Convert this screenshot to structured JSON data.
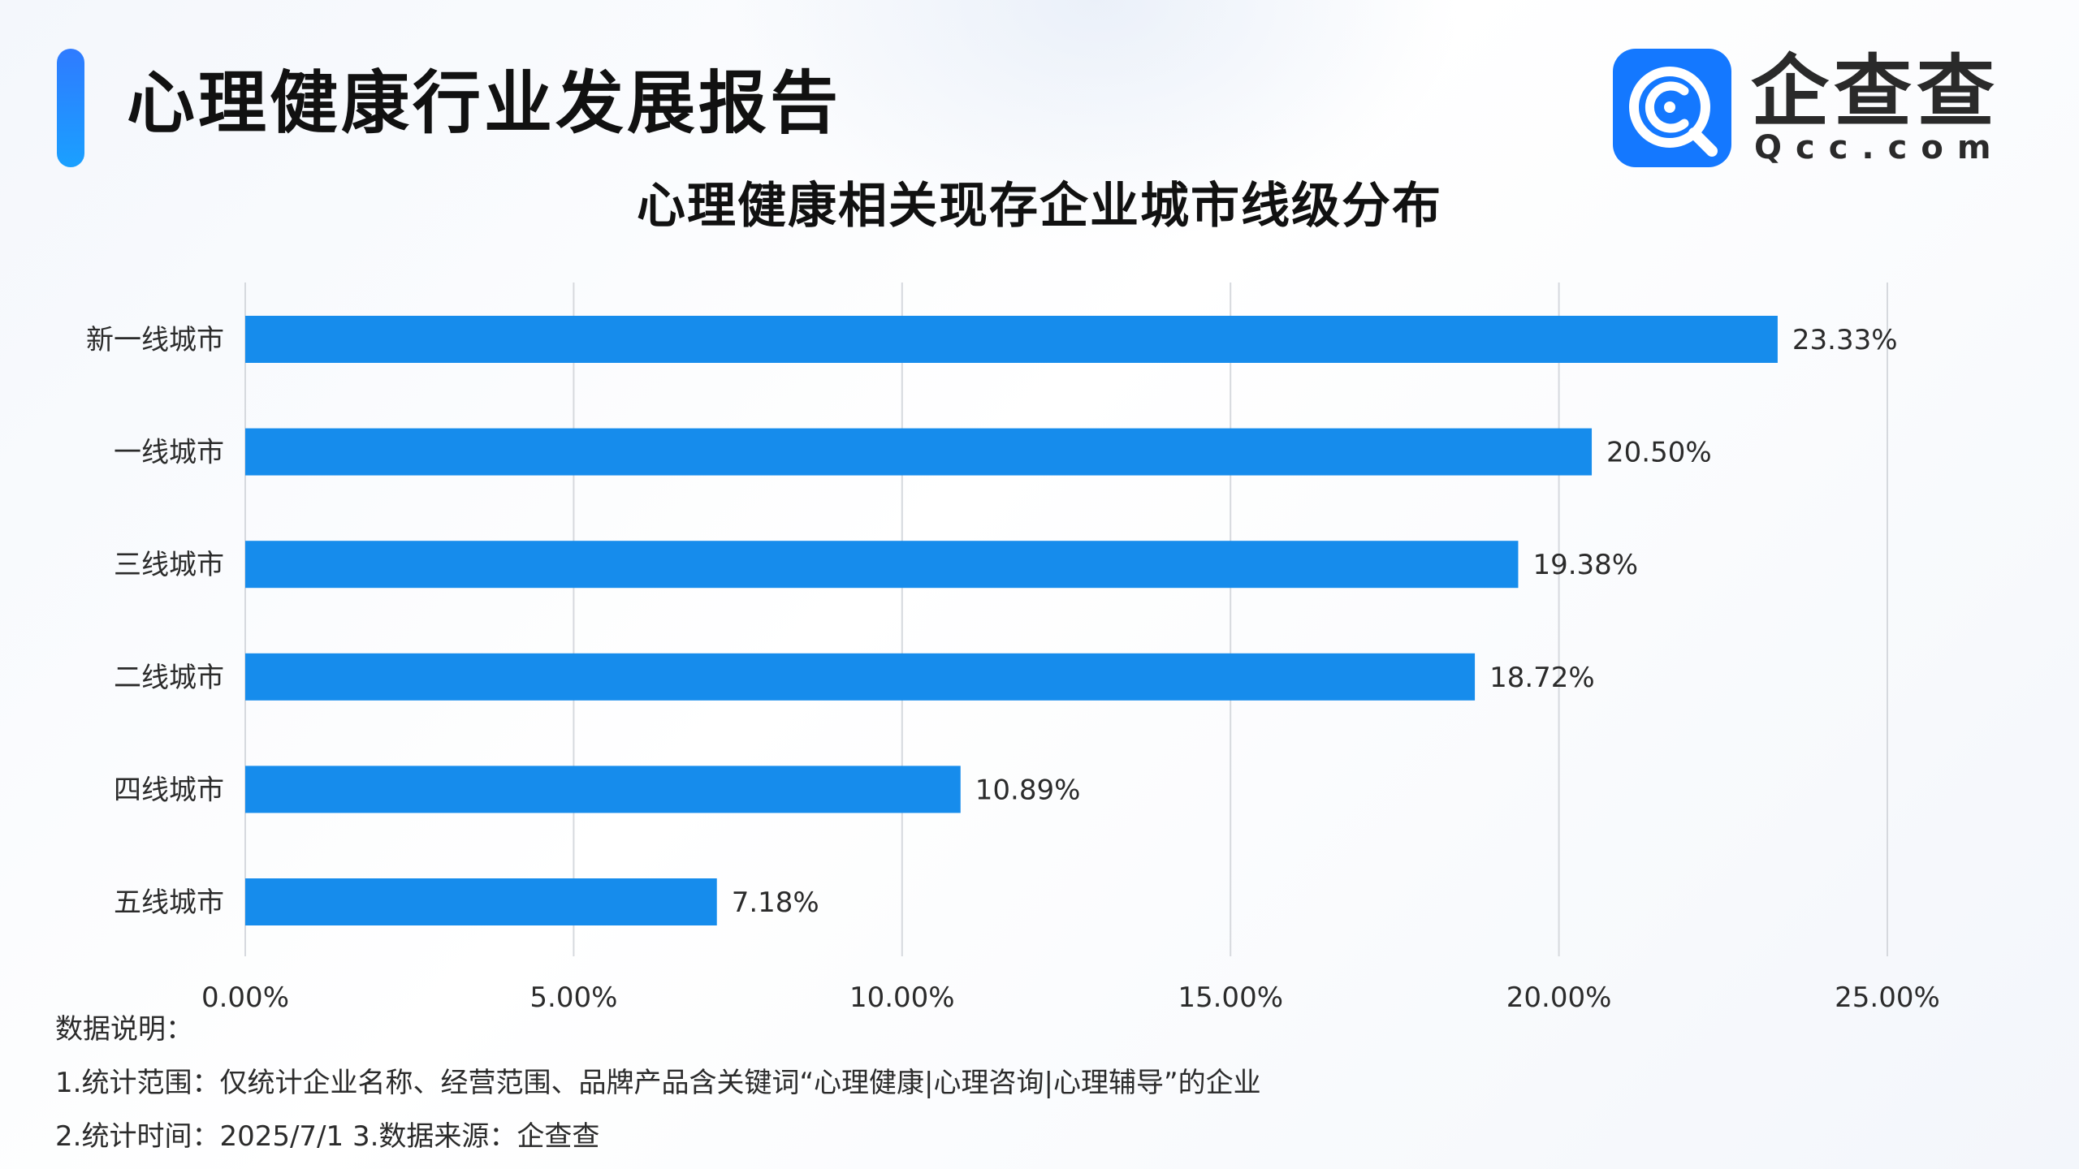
{
  "header": {
    "report_title": "心理健康行业发展报告",
    "logo_text": "企查查",
    "logo_sub": "Qcc.com"
  },
  "colors": {
    "bar": "#168cec",
    "accent": "#1a7cff",
    "logo_bg": "#1478ff",
    "grid": "#d6d9de"
  },
  "chart_data": {
    "type": "bar",
    "orientation": "horizontal",
    "title": "心理健康相关现存企业城市线级分布",
    "categories": [
      "新一线城市",
      "一线城市",
      "三线城市",
      "二线城市",
      "四线城市",
      "五线城市"
    ],
    "values": [
      23.33,
      20.5,
      19.38,
      18.72,
      10.89,
      7.18
    ],
    "value_labels": [
      "23.33%",
      "20.50%",
      "19.38%",
      "18.72%",
      "10.89%",
      "7.18%"
    ],
    "x_ticks": [
      "0.00%",
      "5.00%",
      "10.00%",
      "15.00%",
      "20.00%",
      "25.00%"
    ],
    "xlim": [
      0,
      25
    ],
    "grid": "vertical",
    "xlabel": "",
    "ylabel": ""
  },
  "notes": {
    "heading": "数据说明：",
    "line1": "1.统计范围：仅统计企业名称、经营范围、品牌产品含关键词“心理健康|心理咨询|心理辅导”的企业",
    "line2": " 2.统计时间：2025/7/1  3.数据来源：企查查"
  }
}
